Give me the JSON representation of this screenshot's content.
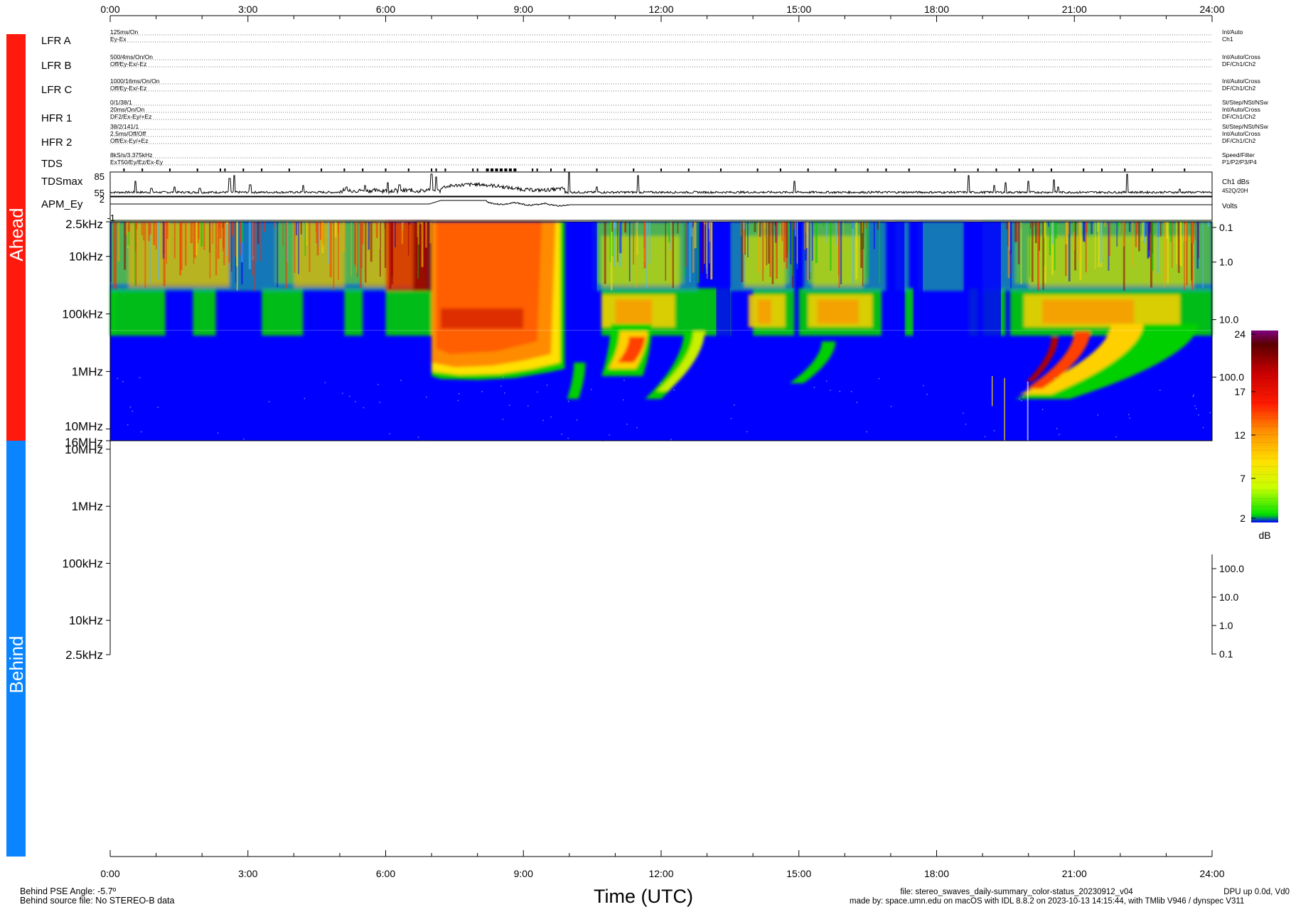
{
  "time_axis": {
    "ticks": [
      "0:00",
      "3:00",
      "6:00",
      "9:00",
      "12:00",
      "15:00",
      "18:00",
      "21:00",
      "24:00"
    ],
    "title": "Time (UTC)"
  },
  "spacecraft": {
    "ahead": {
      "label": "Ahead",
      "color": "#ff1a0d"
    },
    "behind": {
      "label": "Behind",
      "color": "#0a84ff"
    }
  },
  "status_rows": [
    {
      "name": "LFR A",
      "left": [
        "125ms/On",
        "Ey-Ex"
      ],
      "right": [
        "Int/Auto",
        "Ch1"
      ]
    },
    {
      "name": "LFR B",
      "left": [
        "500/4ms/On/On",
        "Off/Ey-Ex/-Ez"
      ],
      "right": [
        "Int/Auto/Cross",
        "DF/Ch1/Ch2"
      ]
    },
    {
      "name": "LFR C",
      "left": [
        "1000/16ms/On/On",
        "Off/Ey-Ex/-Ez"
      ],
      "right": [
        "Int/Auto/Cross",
        "DF/Ch1/Ch2"
      ]
    },
    {
      "name": "HFR 1",
      "left": [
        "0/1/38/1",
        "20ms/On/On",
        "DF2/Ex-Ey/+Ez"
      ],
      "right": [
        "St/Step/NSt/NSw",
        "Int/Auto/Cross",
        "DF/Ch1/Ch2"
      ]
    },
    {
      "name": "HFR 2",
      "left": [
        "38/2/141/1",
        "2.5ms/Off/Off",
        "Off/Ex-Ey/+Ez"
      ],
      "right": [
        "St/Step/NSt/NSw",
        "Int/Auto/Cross",
        "DF/Ch1/Ch2"
      ]
    },
    {
      "name": "TDS",
      "left": [
        "8kS/s/3.375kHz",
        "ExT50/Ey/Ez/Ex-Ey"
      ],
      "right": [
        "Speed/Filter",
        "P1/P2/P3/P4"
      ]
    }
  ],
  "tdsmax": {
    "name": "TDSmax",
    "ticks": [
      "85",
      "55"
    ],
    "right": [
      "Ch1 dBs",
      "452Q/20H"
    ]
  },
  "apm": {
    "name": "APM_Ey",
    "ticks": [
      "2",
      "-1"
    ],
    "right": [
      "Volts"
    ]
  },
  "ahead_panel": {
    "freq_ticks": [
      "2.5kHz",
      "10kHz",
      "100kHz",
      "1MHz",
      "10MHz",
      "16MHz"
    ],
    "right_ticks": [
      "0.1",
      "1.0",
      "10.0",
      "100.0"
    ]
  },
  "behind_panel": {
    "freq_ticks": [
      "10MHz",
      "1MHz",
      "100kHz",
      "10kHz",
      "2.5kHz"
    ],
    "right_ticks": [
      "100.0",
      "10.0",
      "1.0",
      "0.1"
    ]
  },
  "colorbar": {
    "ticks": [
      "24",
      "17",
      "12",
      "7",
      "2"
    ],
    "unit": "dB"
  },
  "footer": {
    "pse_angle": "Behind PSE Angle:   -5.7º",
    "source_file": "Behind source file: No STEREO-B data",
    "file_line": "file: stereo_swaves_daily-summary_color-status_20230912_v04",
    "made_by": "made by: space.umn.edu on macOS with IDL 8.8.2 on 2023-10-13 14:15:44, with TMlib V946 / dynspec V311",
    "dpu": "DPU up 0.0d, Vd0"
  },
  "chart_data": {
    "type": "heatmap",
    "title": "",
    "xlabel": "Time (UTC)",
    "xlim": [
      0,
      24
    ],
    "ylabel": "",
    "ahead_freq_range_khz": [
      2.5,
      16000
    ],
    "behind_freq_range_khz": [
      2.5,
      10000
    ],
    "color_scale": {
      "range_db": [
        2,
        24
      ],
      "unit": "dB",
      "scheme": "rainbow (blue-green-yellow-red-darkred)"
    },
    "ahead_events": [
      {
        "start_h": 7.0,
        "end_h": 9.9,
        "description": "intense broadband emission"
      },
      {
        "start_h": 10.7,
        "end_h": 11.5,
        "description": "type III burst"
      },
      {
        "start_h": 11.7,
        "end_h": 12.4,
        "description": "type III burst"
      },
      {
        "start_h": 19.9,
        "end_h": 20.7,
        "description": "type III burst"
      }
    ],
    "behind_data": "No STEREO-B data",
    "tdsmax_range": [
      55,
      85
    ],
    "apm_range": [
      -1,
      2
    ],
    "grid": false
  }
}
